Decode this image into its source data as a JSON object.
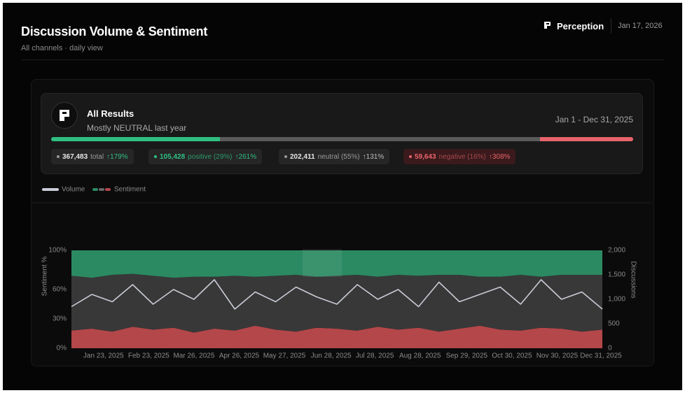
{
  "header": {
    "title": "Discussion Volume & Sentiment",
    "subtitle": "All channels · daily view",
    "brand": "Perception",
    "date": "Jan 17, 2026"
  },
  "card": {
    "title": "All Results",
    "subtitle": "Mostly NEUTRAL last year",
    "range": "Jan 1 - Dec 31, 2025",
    "bar": [
      {
        "value": 29,
        "color": "#2fbf83"
      },
      {
        "value": 55,
        "color": "#5a5a5a"
      },
      {
        "value": 16,
        "color": "#e8636b"
      }
    ],
    "chips": [
      {
        "value": "367,483",
        "label": "total",
        "change": "↑179%"
      },
      {
        "value": "105,428",
        "label": "positive (29%)",
        "change": "↑261%"
      },
      {
        "value": "202,411",
        "label": "neutral (55%)",
        "change": "↑131%"
      },
      {
        "value": "59,643",
        "label": "negative (16%)",
        "change": "↑308%"
      }
    ]
  },
  "chart_data": {
    "type": "area",
    "ylabel": "Sentiment %",
    "y2label": "Discussions",
    "legend": [
      "Volume",
      "Sentiment"
    ],
    "x": [
      "Jan 1, 2025",
      "Jan 15, 2025",
      "Jan 29, 2025",
      "Feb 12, 2025",
      "Feb 26, 2025",
      "Mar 12, 2025",
      "Mar 26, 2025",
      "Apr 9, 2025",
      "Apr 23, 2025",
      "May 7, 2025",
      "May 21, 2025",
      "Jun 4, 2025",
      "Jun 18, 2025",
      "Jul 2, 2025",
      "Jul 16, 2025",
      "Jul 30, 2025",
      "Aug 13, 2025",
      "Aug 27, 2025",
      "Sep 10, 2025",
      "Sep 24, 2025",
      "Oct 8, 2025",
      "Oct 22, 2025",
      "Nov 5, 2025",
      "Nov 19, 2025",
      "Dec 3, 2025",
      "Dec 17, 2025",
      "Dec 31, 2025"
    ],
    "xlim": [
      "Jan 1, 2025",
      "Dec 31, 2025"
    ],
    "xticks": [
      "Jan 23, 2025",
      "Feb 23, 2025",
      "Mar 26, 2025",
      "Apr 26, 2025",
      "May 27, 2025",
      "Jun 28, 2025",
      "Jul 28, 2025",
      "Aug 28, 2025",
      "Sep 29, 2025",
      "Oct 30, 2025",
      "Nov 30, 2025",
      "Dec 31, 2025"
    ],
    "ylim": [
      0,
      100
    ],
    "yticks": [
      {
        "value": 0,
        "label": "0%"
      },
      {
        "value": 30,
        "label": "30%"
      },
      {
        "value": 60,
        "label": "60%"
      },
      {
        "value": 100,
        "label": "100%"
      }
    ],
    "y2lim": [
      0,
      2000
    ],
    "y2ticks": [
      0,
      500,
      {
        "value": 1000,
        "label": "1,000"
      },
      {
        "value": 1500,
        "label": "1,500"
      },
      {
        "value": 2000,
        "label": "2,000"
      }
    ],
    "grid": false,
    "sentiment": [
      {
        "color": "#b4474a",
        "values": [
          18,
          20,
          17,
          22,
          19,
          21,
          16,
          20,
          18,
          23,
          19,
          17,
          21,
          20,
          18,
          22,
          19,
          21,
          17,
          20,
          23,
          19,
          18,
          21,
          20,
          17,
          19
        ]
      },
      {
        "color": "#383838",
        "values": [
          56,
          52,
          58,
          54,
          55,
          51,
          57,
          53,
          56,
          50,
          55,
          58,
          52,
          54,
          57,
          51,
          56,
          53,
          58,
          55,
          50,
          54,
          57,
          52,
          55,
          58,
          56
        ]
      },
      {
        "color": "#2b8a62",
        "values": [
          26,
          28,
          25,
          24,
          26,
          28,
          27,
          27,
          26,
          27,
          26,
          25,
          27,
          26,
          25,
          27,
          25,
          26,
          25,
          25,
          27,
          27,
          25,
          27,
          25,
          25,
          25
        ]
      }
    ],
    "series": [
      {
        "name": "Volume",
        "axis": "y2",
        "color": "#c9ccd6",
        "values": [
          850,
          1100,
          950,
          1300,
          900,
          1200,
          1000,
          1400,
          800,
          1150,
          950,
          1250,
          1050,
          900,
          1300,
          1000,
          1200,
          850,
          1350,
          950,
          1100,
          1250,
          900,
          1400,
          1000,
          1150,
          800
        ]
      }
    ]
  }
}
